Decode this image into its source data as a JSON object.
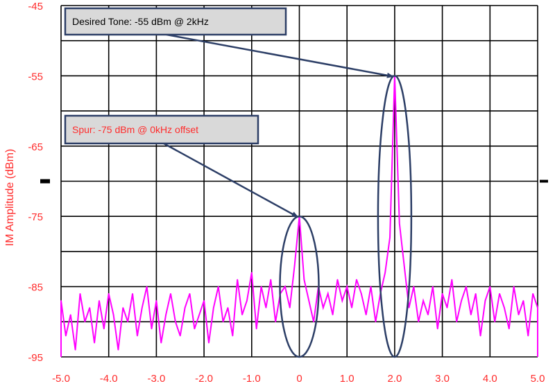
{
  "chart_data": {
    "type": "line",
    "ylabel": "IM Amplitude (dBm)",
    "xlabel": "",
    "title": "",
    "xlim": [
      -5.0,
      5.0
    ],
    "ylim": [
      -95,
      -45
    ],
    "x_ticks": [
      "-5.0",
      "-4.0",
      "-3.0",
      "-2.0",
      "-1.0",
      "0",
      "1.0",
      "2.0",
      "3.0",
      "4.0",
      "5.0"
    ],
    "y_ticks": [
      "-45",
      "-55",
      "-65",
      "-75",
      "-85",
      "-95"
    ],
    "grid": true,
    "series": [
      {
        "color": "#ff00ff",
        "x": [
          -5.0,
          -4.9,
          -4.8,
          -4.7,
          -4.6,
          -4.5,
          -4.4,
          -4.3,
          -4.2,
          -4.1,
          -4.0,
          -3.9,
          -3.8,
          -3.7,
          -3.6,
          -3.5,
          -3.4,
          -3.3,
          -3.2,
          -3.1,
          -3.0,
          -2.9,
          -2.8,
          -2.7,
          -2.6,
          -2.5,
          -2.4,
          -2.3,
          -2.2,
          -2.1,
          -2.0,
          -1.9,
          -1.8,
          -1.7,
          -1.6,
          -1.5,
          -1.4,
          -1.3,
          -1.2,
          -1.1,
          -1.0,
          -0.9,
          -0.8,
          -0.7,
          -0.6,
          -0.5,
          -0.4,
          -0.3,
          -0.2,
          -0.1,
          0.0,
          0.1,
          0.2,
          0.3,
          0.4,
          0.5,
          0.6,
          0.7,
          0.8,
          0.9,
          1.0,
          1.1,
          1.2,
          1.3,
          1.4,
          1.5,
          1.6,
          1.7,
          1.8,
          1.9,
          2.0,
          2.1,
          2.2,
          2.3,
          2.4,
          2.5,
          2.6,
          2.7,
          2.8,
          2.9,
          3.0,
          3.1,
          3.2,
          3.3,
          3.4,
          3.5,
          3.6,
          3.7,
          3.8,
          3.9,
          4.0,
          4.1,
          4.2,
          4.3,
          4.4,
          4.5,
          4.6,
          4.7,
          4.8,
          4.9,
          5.0
        ],
        "values": [
          -87,
          -92,
          -89,
          -94,
          -86,
          -90,
          -88,
          -93,
          -87,
          -91,
          -86,
          -89,
          -94,
          -88,
          -90,
          -86,
          -92,
          -88,
          -85,
          -91,
          -87,
          -93,
          -89,
          -86,
          -90,
          -92,
          -88,
          -86,
          -91,
          -89,
          -87,
          -93,
          -88,
          -85,
          -90,
          -88,
          -92,
          -84,
          -89,
          -87,
          -83,
          -91,
          -85,
          -88,
          -84,
          -90,
          -86,
          -85,
          -88,
          -82,
          -75,
          -84,
          -87,
          -90,
          -85,
          -88,
          -86,
          -89,
          -84,
          -87,
          -85,
          -88,
          -84,
          -86,
          -89,
          -85,
          -90,
          -86,
          -83,
          -78,
          -55,
          -76,
          -82,
          -88,
          -85,
          -90,
          -87,
          -89,
          -85,
          -91,
          -86,
          -88,
          -84,
          -90,
          -87,
          -85,
          -89,
          -86,
          -92,
          -87,
          -85,
          -90,
          -86,
          -88,
          -91,
          -85,
          -89,
          -87,
          -92,
          -86,
          -88
        ]
      }
    ],
    "annotations": [
      {
        "text": "Desired Tone: -55 dBm @ 2kHz",
        "x": 2.0,
        "y": -55,
        "text_color": "#000000"
      },
      {
        "text": "Spur: -75 dBm @ 0kHz offset",
        "x": 0.0,
        "y": -75,
        "text_color": "#ff2b2b"
      }
    ],
    "colors": {
      "axis_text": "#ff2b2b",
      "grid": "#000000",
      "annotation_stroke": "#2c3e66",
      "annotation_fill": "#d9d9d9"
    }
  }
}
